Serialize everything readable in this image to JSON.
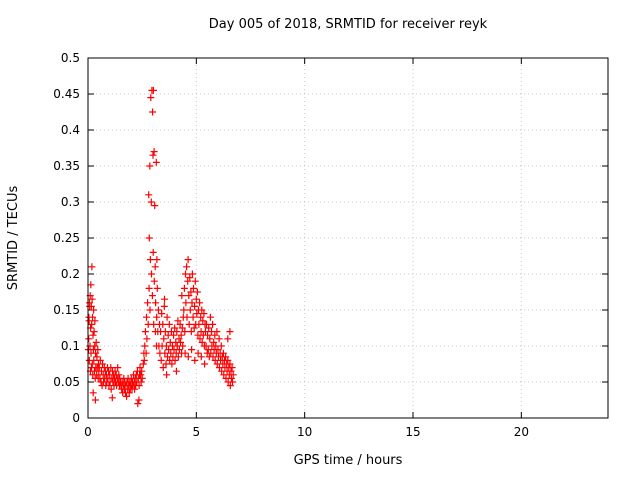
{
  "chart_data": {
    "type": "scatter",
    "title": "Day 005 of 2018, SRMTID for receiver reyk",
    "xlabel": "GPS time / hours",
    "ylabel": "SRMTID / TECUs",
    "xlim": [
      0,
      24
    ],
    "ylim": [
      0,
      0.5
    ],
    "xticks": [
      0,
      5,
      10,
      15,
      20
    ],
    "xtick_labels": [
      "0",
      "5",
      "10",
      "15",
      "20"
    ],
    "yticks": [
      0,
      0.05,
      0.1,
      0.15,
      0.2,
      0.25,
      0.3,
      0.35,
      0.4,
      0.45,
      0.5
    ],
    "ytick_labels": [
      "0",
      "0.05",
      "0.1",
      "0.15",
      "0.2",
      "0.25",
      "0.3",
      "0.35",
      "0.4",
      "0.45",
      "0.5"
    ],
    "grid": true,
    "legend": "none",
    "marker": {
      "shape": "plus",
      "color": "#ff0000",
      "size": 7
    },
    "series": [
      {
        "name": "SRMTID",
        "points": [
          [
            0.02,
            0.095
          ],
          [
            0.03,
            0.11
          ],
          [
            0.04,
            0.14
          ],
          [
            0.05,
            0.135
          ],
          [
            0.06,
            0.08
          ],
          [
            0.07,
            0.16
          ],
          [
            0.08,
            0.155
          ],
          [
            0.09,
            0.1
          ],
          [
            0.1,
            0.17
          ],
          [
            0.11,
            0.065
          ],
          [
            0.12,
            0.125
          ],
          [
            0.13,
            0.185
          ],
          [
            0.14,
            0.09
          ],
          [
            0.15,
            0.155
          ],
          [
            0.16,
            0.07
          ],
          [
            0.17,
            0.13
          ],
          [
            0.18,
            0.21
          ],
          [
            0.19,
            0.165
          ],
          [
            0.2,
            0.075
          ],
          [
            0.21,
            0.14
          ],
          [
            0.22,
            0.06
          ],
          [
            0.23,
            0.115
          ],
          [
            0.24,
            0.035
          ],
          [
            0.25,
            0.095
          ],
          [
            0.26,
            0.15
          ],
          [
            0.27,
            0.08
          ],
          [
            0.28,
            0.12
          ],
          [
            0.3,
            0.065
          ],
          [
            0.31,
            0.1
          ],
          [
            0.32,
            0.135
          ],
          [
            0.33,
            0.055
          ],
          [
            0.34,
            0.025
          ],
          [
            0.35,
            0.09
          ],
          [
            0.36,
            0.07
          ],
          [
            0.38,
            0.105
          ],
          [
            0.4,
            0.06
          ],
          [
            0.41,
            0.085
          ],
          [
            0.43,
            0.07
          ],
          [
            0.45,
            0.095
          ],
          [
            0.47,
            0.055
          ],
          [
            0.48,
            0.075
          ],
          [
            0.5,
            0.065
          ],
          [
            0.52,
            0.07
          ],
          [
            0.55,
            0.055
          ],
          [
            0.57,
            0.08
          ],
          [
            0.6,
            0.05
          ],
          [
            0.62,
            0.065
          ],
          [
            0.65,
            0.045
          ],
          [
            0.67,
            0.075
          ],
          [
            0.7,
            0.06
          ],
          [
            0.72,
            0.05
          ],
          [
            0.75,
            0.07
          ],
          [
            0.77,
            0.055
          ],
          [
            0.8,
            0.065
          ],
          [
            0.82,
            0.045
          ],
          [
            0.85,
            0.06
          ],
          [
            0.87,
            0.05
          ],
          [
            0.9,
            0.07
          ],
          [
            0.92,
            0.055
          ],
          [
            0.95,
            0.065
          ],
          [
            0.97,
            0.045
          ],
          [
            1.0,
            0.06
          ],
          [
            1.02,
            0.05
          ],
          [
            1.05,
            0.07
          ],
          [
            1.07,
            0.04
          ],
          [
            1.1,
            0.055
          ],
          [
            1.12,
            0.028
          ],
          [
            1.13,
            0.065
          ],
          [
            1.15,
            0.05
          ],
          [
            1.17,
            0.06
          ],
          [
            1.2,
            0.045
          ],
          [
            1.22,
            0.055
          ],
          [
            1.25,
            0.065
          ],
          [
            1.27,
            0.05
          ],
          [
            1.3,
            0.06
          ],
          [
            1.32,
            0.045
          ],
          [
            1.35,
            0.055
          ],
          [
            1.37,
            0.07
          ],
          [
            1.4,
            0.05
          ],
          [
            1.42,
            0.06
          ],
          [
            1.45,
            0.045
          ],
          [
            1.47,
            0.055
          ],
          [
            1.5,
            0.05
          ],
          [
            1.52,
            0.045
          ],
          [
            1.55,
            0.04
          ],
          [
            1.58,
            0.05
          ],
          [
            1.6,
            0.035
          ],
          [
            1.63,
            0.045
          ],
          [
            1.65,
            0.055
          ],
          [
            1.68,
            0.04
          ],
          [
            1.7,
            0.05
          ],
          [
            1.73,
            0.035
          ],
          [
            1.75,
            0.045
          ],
          [
            1.78,
            0.03
          ],
          [
            1.8,
            0.05
          ],
          [
            1.83,
            0.04
          ],
          [
            1.85,
            0.055
          ],
          [
            1.88,
            0.045
          ],
          [
            1.9,
            0.035
          ],
          [
            1.93,
            0.05
          ],
          [
            1.95,
            0.04
          ],
          [
            1.98,
            0.045
          ],
          [
            2.0,
            0.055
          ],
          [
            2.03,
            0.04
          ],
          [
            2.05,
            0.05
          ],
          [
            2.08,
            0.045
          ],
          [
            2.1,
            0.06
          ],
          [
            2.13,
            0.05
          ],
          [
            2.15,
            0.04
          ],
          [
            2.18,
            0.055
          ],
          [
            2.2,
            0.045
          ],
          [
            2.23,
            0.06
          ],
          [
            2.25,
            0.05
          ],
          [
            2.28,
            0.065
          ],
          [
            2.3,
            0.02
          ],
          [
            2.32,
            0.055
          ],
          [
            2.35,
            0.025
          ],
          [
            2.36,
            0.045
          ],
          [
            2.38,
            0.06
          ],
          [
            2.4,
            0.07
          ],
          [
            2.43,
            0.06
          ],
          [
            2.45,
            0.05
          ],
          [
            2.48,
            0.065
          ],
          [
            2.5,
            0.055
          ],
          [
            2.55,
            0.075
          ],
          [
            2.58,
            0.09
          ],
          [
            2.6,
            0.08
          ],
          [
            2.62,
            0.1
          ],
          [
            2.65,
            0.12
          ],
          [
            2.68,
            0.09
          ],
          [
            2.7,
            0.14
          ],
          [
            2.72,
            0.11
          ],
          [
            2.75,
            0.16
          ],
          [
            2.78,
            0.13
          ],
          [
            2.8,
            0.31
          ],
          [
            2.82,
            0.18
          ],
          [
            2.83,
            0.25
          ],
          [
            2.85,
            0.35
          ],
          [
            2.86,
            0.15
          ],
          [
            2.88,
            0.22
          ],
          [
            2.9,
            0.445
          ],
          [
            2.92,
            0.3
          ],
          [
            2.93,
            0.2
          ],
          [
            2.95,
            0.455
          ],
          [
            2.97,
            0.17
          ],
          [
            2.98,
            0.425
          ],
          [
            3.0,
            0.365
          ],
          [
            3.01,
            0.23
          ],
          [
            3.02,
            0.455
          ],
          [
            3.03,
            0.13
          ],
          [
            3.05,
            0.37
          ],
          [
            3.06,
            0.19
          ],
          [
            3.08,
            0.295
          ],
          [
            3.1,
            0.21
          ],
          [
            3.11,
            0.12
          ],
          [
            3.12,
            0.16
          ],
          [
            3.15,
            0.355
          ],
          [
            3.16,
            0.1
          ],
          [
            3.17,
            0.14
          ],
          [
            3.18,
            0.22
          ],
          [
            3.2,
            0.18
          ],
          [
            3.22,
            0.12
          ],
          [
            3.25,
            0.15
          ],
          [
            3.27,
            0.1
          ],
          [
            3.3,
            0.13
          ],
          [
            3.32,
            0.09
          ],
          [
            3.35,
            0.12
          ],
          [
            3.38,
            0.08
          ],
          [
            3.4,
            0.145
          ],
          [
            3.42,
            0.1
          ],
          [
            3.45,
            0.13
          ],
          [
            3.47,
            0.07
          ],
          [
            3.5,
            0.11
          ],
          [
            3.52,
            0.155
          ],
          [
            3.53,
            0.165
          ],
          [
            3.55,
            0.09
          ],
          [
            3.57,
            0.12
          ],
          [
            3.6,
            0.075
          ],
          [
            3.62,
            0.1
          ],
          [
            3.63,
            0.06
          ],
          [
            3.65,
            0.14
          ],
          [
            3.67,
            0.085
          ],
          [
            3.7,
            0.115
          ],
          [
            3.72,
            0.095
          ],
          [
            3.75,
            0.13
          ],
          [
            3.77,
            0.08
          ],
          [
            3.8,
            0.105
          ],
          [
            3.82,
            0.09
          ],
          [
            3.85,
            0.12
          ],
          [
            3.87,
            0.075
          ],
          [
            3.9,
            0.1
          ],
          [
            3.92,
            0.085
          ],
          [
            3.95,
            0.115
          ],
          [
            3.97,
            0.095
          ],
          [
            4.0,
            0.125
          ],
          [
            4.02,
            0.08
          ],
          [
            4.05,
            0.105
          ],
          [
            4.07,
            0.09
          ],
          [
            4.08,
            0.065
          ],
          [
            4.1,
            0.12
          ],
          [
            4.12,
            0.1
          ],
          [
            4.15,
            0.135
          ],
          [
            4.17,
            0.085
          ],
          [
            4.2,
            0.11
          ],
          [
            4.22,
            0.095
          ],
          [
            4.25,
            0.13
          ],
          [
            4.27,
            0.105
          ],
          [
            4.3,
            0.115
          ],
          [
            4.32,
            0.09
          ],
          [
            4.33,
            0.17
          ],
          [
            4.35,
            0.125
          ],
          [
            4.37,
            0.1
          ],
          [
            4.4,
            0.14
          ],
          [
            4.42,
            0.15
          ],
          [
            4.45,
            0.18
          ],
          [
            4.47,
            0.12
          ],
          [
            4.48,
            0.09
          ],
          [
            4.5,
            0.2
          ],
          [
            4.52,
            0.16
          ],
          [
            4.55,
            0.21
          ],
          [
            4.57,
            0.14
          ],
          [
            4.6,
            0.19
          ],
          [
            4.62,
            0.22
          ],
          [
            4.63,
            0.085
          ],
          [
            4.65,
            0.17
          ],
          [
            4.67,
            0.13
          ],
          [
            4.7,
            0.195
          ],
          [
            4.72,
            0.15
          ],
          [
            4.75,
            0.175
          ],
          [
            4.77,
            0.12
          ],
          [
            4.78,
            0.095
          ],
          [
            4.8,
            0.16
          ],
          [
            4.82,
            0.2
          ],
          [
            4.85,
            0.14
          ],
          [
            4.87,
            0.18
          ],
          [
            4.9,
            0.125
          ],
          [
            4.92,
            0.155
          ],
          [
            4.93,
            0.08
          ],
          [
            4.95,
            0.19
          ],
          [
            4.97,
            0.13
          ],
          [
            5.0,
            0.165
          ],
          [
            5.02,
            0.145
          ],
          [
            5.05,
            0.175
          ],
          [
            5.07,
            0.115
          ],
          [
            5.08,
            0.09
          ],
          [
            5.1,
            0.15
          ],
          [
            5.12,
            0.13
          ],
          [
            5.15,
            0.16
          ],
          [
            5.17,
            0.11
          ],
          [
            5.2,
            0.14
          ],
          [
            5.22,
            0.12
          ],
          [
            5.23,
            0.085
          ],
          [
            5.25,
            0.15
          ],
          [
            5.27,
            0.105
          ],
          [
            5.3,
            0.135
          ],
          [
            5.32,
            0.115
          ],
          [
            5.35,
            0.145
          ],
          [
            5.37,
            0.1
          ],
          [
            5.38,
            0.075
          ],
          [
            5.4,
            0.13
          ],
          [
            5.42,
            0.12
          ],
          [
            5.45,
            0.1
          ],
          [
            5.47,
            0.13
          ],
          [
            5.5,
            0.09
          ],
          [
            5.52,
            0.115
          ],
          [
            5.55,
            0.095
          ],
          [
            5.57,
            0.125
          ],
          [
            5.6,
            0.085
          ],
          [
            5.62,
            0.11
          ],
          [
            5.65,
            0.14
          ],
          [
            5.67,
            0.09
          ],
          [
            5.7,
            0.12
          ],
          [
            5.72,
            0.1
          ],
          [
            5.75,
            0.13
          ],
          [
            5.77,
            0.085
          ],
          [
            5.8,
            0.105
          ],
          [
            5.82,
            0.095
          ],
          [
            5.85,
            0.115
          ],
          [
            5.87,
            0.08
          ],
          [
            5.9,
            0.1
          ],
          [
            5.92,
            0.09
          ],
          [
            5.95,
            0.12
          ],
          [
            5.97,
            0.075
          ],
          [
            6.0,
            0.095
          ],
          [
            6.02,
            0.085
          ],
          [
            6.05,
            0.11
          ],
          [
            6.07,
            0.07
          ],
          [
            6.1,
            0.09
          ],
          [
            6.12,
            0.08
          ],
          [
            6.15,
            0.1
          ],
          [
            6.17,
            0.065
          ],
          [
            6.2,
            0.085
          ],
          [
            6.22,
            0.075
          ],
          [
            6.25,
            0.09
          ],
          [
            6.27,
            0.06
          ],
          [
            6.3,
            0.08
          ],
          [
            6.32,
            0.07
          ],
          [
            6.35,
            0.085
          ],
          [
            6.37,
            0.055
          ],
          [
            6.4,
            0.075
          ],
          [
            6.42,
            0.065
          ],
          [
            6.45,
            0.11
          ],
          [
            6.45,
            0.08
          ],
          [
            6.47,
            0.05
          ],
          [
            6.5,
            0.07
          ],
          [
            6.52,
            0.06
          ],
          [
            6.55,
            0.12
          ],
          [
            6.55,
            0.075
          ],
          [
            6.57,
            0.045
          ],
          [
            6.6,
            0.065
          ],
          [
            6.62,
            0.055
          ],
          [
            6.65,
            0.07
          ],
          [
            6.67,
            0.05
          ],
          [
            6.7,
            0.06
          ]
        ]
      }
    ]
  }
}
